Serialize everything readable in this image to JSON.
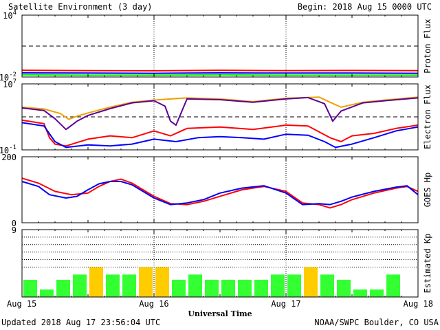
{
  "header": {
    "title": "Satellite Environment (3 day)",
    "begin": "Begin:  2018 Aug 15 0000 UTC"
  },
  "footer": {
    "updated": "Updated 2018 Aug 17 23:56:04 UTC",
    "credit": "NOAA/SWPC Boulder, CO USA"
  },
  "colors": {
    "red": "#ff0000",
    "blue": "#0000ff",
    "green": "#00ee00",
    "orange": "#f0a000",
    "purple": "#5a0096",
    "kp_green": "#33ff33",
    "kp_yellow": "#ffcc00"
  },
  "chart_data": [
    {
      "type": "line",
      "ylabel": "Proton Flux",
      "yscale": "log",
      "ylim": [
        0.01,
        10000
      ],
      "yticks": [
        {
          "exp": "4",
          "value": 10000
        },
        {
          "exp": "-2",
          "value": 0.01
        }
      ],
      "threshold": 10,
      "x_unit": "hours since 2018 Aug 15 00 UTC",
      "series": [
        {
          "color": "red",
          "points": [
            [
              0,
              0.045
            ],
            [
              12,
              0.042
            ],
            [
              24,
              0.04
            ],
            [
              36,
              0.045
            ],
            [
              48,
              0.041
            ],
            [
              60,
              0.043
            ],
            [
              72,
              0.042
            ]
          ]
        },
        {
          "color": "blue",
          "points": [
            [
              0,
              0.025
            ],
            [
              12,
              0.024
            ],
            [
              24,
              0.023
            ],
            [
              36,
              0.025
            ],
            [
              48,
              0.024
            ],
            [
              60,
              0.024
            ],
            [
              72,
              0.023
            ]
          ]
        },
        {
          "color": "green",
          "points": [
            [
              0,
              0.016
            ],
            [
              12,
              0.015
            ],
            [
              24,
              0.015
            ],
            [
              36,
              0.016
            ],
            [
              48,
              0.015
            ],
            [
              60,
              0.015
            ],
            [
              72,
              0.015
            ]
          ]
        }
      ]
    },
    {
      "type": "line",
      "ylabel": "Electron Flux",
      "yscale": "log",
      "ylim": [
        0.1,
        10000000
      ],
      "yticks": [
        {
          "exp": "7",
          "value": 10000000
        },
        {
          "exp": "-1",
          "value": 0.1
        }
      ],
      "threshold": 1000,
      "series": [
        {
          "color": "orange",
          "points": [
            [
              0,
              15000
            ],
            [
              4,
              9000
            ],
            [
              7,
              2500
            ],
            [
              8.5,
              500
            ],
            [
              10,
              1200
            ],
            [
              12,
              3000
            ],
            [
              16,
              15000
            ],
            [
              20,
              60000
            ],
            [
              24,
              110000
            ],
            [
              30,
              200000
            ],
            [
              36,
              150000
            ],
            [
              42,
              70000
            ],
            [
              48,
              180000
            ],
            [
              54,
              250000
            ],
            [
              56,
              60000
            ],
            [
              58,
              15000
            ],
            [
              62,
              60000
            ],
            [
              66,
              110000
            ],
            [
              72,
              250000
            ]
          ]
        },
        {
          "color": "purple",
          "points": [
            [
              0,
              12000
            ],
            [
              4,
              6000
            ],
            [
              6,
              600
            ],
            [
              8,
              30
            ],
            [
              10,
              300
            ],
            [
              12,
              1500
            ],
            [
              16,
              10000
            ],
            [
              20,
              50000
            ],
            [
              24,
              90000
            ],
            [
              26,
              20000
            ],
            [
              27,
              300
            ],
            [
              28,
              100
            ],
            [
              30,
              150000
            ],
            [
              36,
              120000
            ],
            [
              42,
              60000
            ],
            [
              48,
              150000
            ],
            [
              52,
              220000
            ],
            [
              55,
              40000
            ],
            [
              56.5,
              300
            ],
            [
              58,
              5000
            ],
            [
              62,
              50000
            ],
            [
              66,
              90000
            ],
            [
              72,
              200000
            ]
          ]
        },
        {
          "color": "red",
          "points": [
            [
              0,
              400
            ],
            [
              4,
              150
            ],
            [
              5,
              3
            ],
            [
              6,
              0.5
            ],
            [
              8,
              0.3
            ],
            [
              12,
              2
            ],
            [
              16,
              5
            ],
            [
              20,
              3
            ],
            [
              24,
              20
            ],
            [
              27,
              5
            ],
            [
              30,
              40
            ],
            [
              36,
              60
            ],
            [
              42,
              30
            ],
            [
              48,
              100
            ],
            [
              52,
              80
            ],
            [
              56,
              3
            ],
            [
              58,
              1
            ],
            [
              60,
              5
            ],
            [
              64,
              10
            ],
            [
              68,
              40
            ],
            [
              72,
              100
            ]
          ]
        },
        {
          "color": "blue",
          "points": [
            [
              0,
              200
            ],
            [
              4,
              80
            ],
            [
              6,
              1
            ],
            [
              8,
              0.2
            ],
            [
              12,
              0.4
            ],
            [
              16,
              0.3
            ],
            [
              20,
              0.5
            ],
            [
              24,
              2
            ],
            [
              28,
              1
            ],
            [
              32,
              3
            ],
            [
              36,
              4
            ],
            [
              40,
              3
            ],
            [
              44,
              2
            ],
            [
              48,
              8
            ],
            [
              52,
              6
            ],
            [
              55,
              1
            ],
            [
              57,
              0.2
            ],
            [
              60,
              0.5
            ],
            [
              64,
              3
            ],
            [
              68,
              20
            ],
            [
              72,
              60
            ]
          ]
        }
      ]
    },
    {
      "type": "line",
      "ylabel": "GOES Hp",
      "ylim": [
        0,
        200
      ],
      "yticks": [
        "200",
        "0"
      ],
      "series": [
        {
          "color": "red",
          "points": [
            [
              0,
              135
            ],
            [
              3,
              120
            ],
            [
              6,
              95
            ],
            [
              9,
              85
            ],
            [
              12,
              90
            ],
            [
              14,
              110
            ],
            [
              16,
              125
            ],
            [
              18,
              132
            ],
            [
              20,
              120
            ],
            [
              22,
              100
            ],
            [
              24,
              80
            ],
            [
              27,
              58
            ],
            [
              30,
              55
            ],
            [
              33,
              65
            ],
            [
              36,
              80
            ],
            [
              40,
              100
            ],
            [
              44,
              110
            ],
            [
              48,
              95
            ],
            [
              51,
              60
            ],
            [
              54,
              55
            ],
            [
              56,
              45
            ],
            [
              58,
              55
            ],
            [
              60,
              70
            ],
            [
              64,
              90
            ],
            [
              68,
              105
            ],
            [
              70,
              110
            ],
            [
              72,
              95
            ]
          ]
        },
        {
          "color": "blue",
          "points": [
            [
              0,
              125
            ],
            [
              3,
              110
            ],
            [
              5,
              85
            ],
            [
              8,
              75
            ],
            [
              10,
              80
            ],
            [
              12,
              100
            ],
            [
              14,
              118
            ],
            [
              16,
              125
            ],
            [
              18,
              125
            ],
            [
              20,
              115
            ],
            [
              22,
              95
            ],
            [
              24,
              75
            ],
            [
              27,
              55
            ],
            [
              30,
              60
            ],
            [
              33,
              70
            ],
            [
              36,
              90
            ],
            [
              40,
              105
            ],
            [
              44,
              112
            ],
            [
              48,
              90
            ],
            [
              51,
              55
            ],
            [
              54,
              58
            ],
            [
              56,
              55
            ],
            [
              58,
              65
            ],
            [
              60,
              78
            ],
            [
              64,
              95
            ],
            [
              68,
              108
            ],
            [
              70,
              112
            ],
            [
              72,
              85
            ]
          ]
        }
      ]
    },
    {
      "type": "bar",
      "ylabel": "Estimated Kp",
      "ylim": [
        0,
        9
      ],
      "yticks": [
        "9"
      ],
      "gridlines": [
        4,
        5,
        6,
        7,
        8
      ],
      "bar_interval_hours": 3,
      "values": [
        2.3,
        1.0,
        2.3,
        3.0,
        4.0,
        3.0,
        3.0,
        4.0,
        4.0,
        2.3,
        3.0,
        2.3,
        2.3,
        2.3,
        2.3,
        3.0,
        3.0,
        4.0,
        3.0,
        2.3,
        1.0,
        1.0,
        3.0
      ],
      "bar_colors": [
        "kp_green",
        "kp_green",
        "kp_green",
        "kp_green",
        "kp_yellow",
        "kp_green",
        "kp_green",
        "kp_yellow",
        "kp_yellow",
        "kp_green",
        "kp_green",
        "kp_green",
        "kp_green",
        "kp_green",
        "kp_green",
        "kp_green",
        "kp_green",
        "kp_yellow",
        "kp_green",
        "kp_green",
        "kp_green",
        "kp_green",
        "kp_green"
      ]
    }
  ],
  "x_axis": {
    "xlabel": "Universal Time",
    "ticks": [
      {
        "label": "Aug 15",
        "hour": 0
      },
      {
        "label": "Aug 16",
        "hour": 24
      },
      {
        "label": "Aug 17",
        "hour": 48
      },
      {
        "label": "Aug 18",
        "hour": 72
      }
    ]
  }
}
